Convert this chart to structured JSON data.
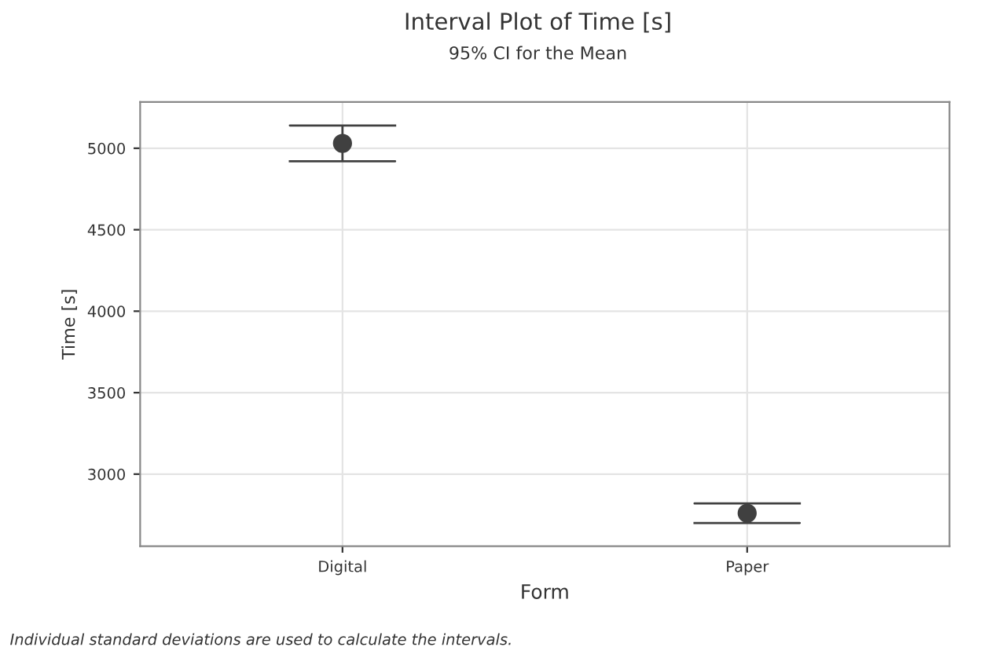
{
  "chart_data": {
    "type": "scatter",
    "title": "Interval Plot of Time [s]",
    "subtitle": "95% CI for the Mean",
    "xlabel": "Form",
    "ylabel": "Time [s]",
    "categories": [
      "Digital",
      "Paper"
    ],
    "series": [
      {
        "color": "#404040",
        "values": [
          5030,
          2760
        ],
        "errors": [
          110,
          60
        ]
      }
    ],
    "ylim": [
      2558,
      5284
    ],
    "yticks": [
      3000,
      3500,
      4000,
      4500,
      5000
    ],
    "grid": true,
    "marker": "circle",
    "annotations": [
      "Individual standard deviations are used to calculate the intervals."
    ]
  }
}
